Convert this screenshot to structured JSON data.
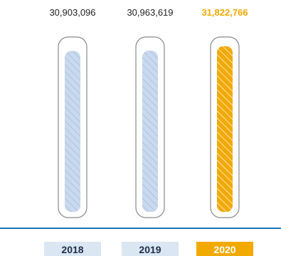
{
  "chart_data": {
    "type": "bar",
    "title": "",
    "xlabel": "",
    "ylabel": "",
    "categories": [
      "2018",
      "2019",
      "2020"
    ],
    "values": [
      30903096,
      30963619,
      31822766
    ],
    "value_labels": [
      "30,903,096",
      "30,963,619",
      "31,822,766"
    ],
    "highlight_index": 2,
    "ylim": [
      0,
      32500000
    ],
    "grid": false,
    "legend": "none"
  },
  "colors": {
    "bar_default": "#c9d9ee",
    "bar_default_stroke": "#9fb5d3",
    "bar_highlight": "#f2a900",
    "label_default": "#222222",
    "label_highlight": "#f2a900",
    "baseline": "#1a73b8",
    "category_bg_default": "#dbe6f3",
    "category_bg_highlight": "#f2a900",
    "category_text_default": "#1f2f4a",
    "category_text_highlight": "#ffffff",
    "outline": "#8a8a8a"
  }
}
